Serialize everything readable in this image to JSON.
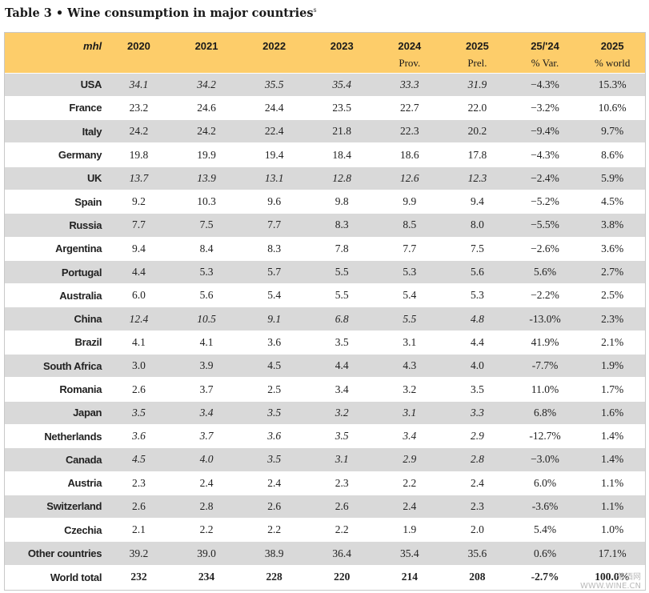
{
  "title": "Table 3 • Wine consumption in major countries",
  "title_footnote": "s",
  "header": {
    "unit": "mhl",
    "columns": [
      {
        "top": "2020",
        "sub": ""
      },
      {
        "top": "2021",
        "sub": ""
      },
      {
        "top": "2022",
        "sub": ""
      },
      {
        "top": "2023",
        "sub": ""
      },
      {
        "top": "2024",
        "sub": "Prov."
      },
      {
        "top": "2025",
        "sub": "Prel."
      },
      {
        "top": "25/'24",
        "sub": "% Var."
      },
      {
        "top": "2025",
        "sub": "% world"
      }
    ]
  },
  "rows": [
    {
      "country": "USA",
      "italic_years": true,
      "values": [
        "34.1",
        "34.2",
        "35.5",
        "35.4",
        "33.3",
        "31.9"
      ],
      "var": "−4.3%",
      "world": "15.3%"
    },
    {
      "country": "France",
      "italic_years": false,
      "values": [
        "23.2",
        "24.6",
        "24.4",
        "23.5",
        "22.7",
        "22.0"
      ],
      "var": "−3.2%",
      "world": "10.6%"
    },
    {
      "country": "Italy",
      "italic_years": false,
      "values": [
        "24.2",
        "24.2",
        "22.4",
        "21.8",
        "22.3",
        "20.2"
      ],
      "var": "−9.4%",
      "world": "9.7%"
    },
    {
      "country": "Germany",
      "italic_years": false,
      "values": [
        "19.8",
        "19.9",
        "19.4",
        "18.4",
        "18.6",
        "17.8"
      ],
      "var": "−4.3%",
      "world": "8.6%"
    },
    {
      "country": "UK",
      "italic_years": true,
      "values": [
        "13.7",
        "13.9",
        "13.1",
        "12.8",
        "12.6",
        "12.3"
      ],
      "var": "−2.4%",
      "world": "5.9%"
    },
    {
      "country": "Spain",
      "italic_years": false,
      "values": [
        "9.2",
        "10.3",
        "9.6",
        "9.8",
        "9.9",
        "9.4"
      ],
      "var": "−5.2%",
      "world": "4.5%"
    },
    {
      "country": "Russia",
      "italic_years": false,
      "values": [
        "7.7",
        "7.5",
        "7.7",
        "8.3",
        "8.5",
        "8.0"
      ],
      "var": "−5.5%",
      "world": "3.8%"
    },
    {
      "country": "Argentina",
      "italic_years": false,
      "values": [
        "9.4",
        "8.4",
        "8.3",
        "7.8",
        "7.7",
        "7.5"
      ],
      "var": "−2.6%",
      "world": "3.6%"
    },
    {
      "country": "Portugal",
      "italic_years": false,
      "values": [
        "4.4",
        "5.3",
        "5.7",
        "5.5",
        "5.3",
        "5.6"
      ],
      "var": "5.6%",
      "world": "2.7%"
    },
    {
      "country": "Australia",
      "italic_years": false,
      "values": [
        "6.0",
        "5.6",
        "5.4",
        "5.5",
        "5.4",
        "5.3"
      ],
      "var": "−2.2%",
      "world": "2.5%"
    },
    {
      "country": "China",
      "italic_years": true,
      "values": [
        "12.4",
        "10.5",
        "9.1",
        "6.8",
        "5.5",
        "4.8"
      ],
      "var": "-13.0%",
      "world": "2.3%"
    },
    {
      "country": "Brazil",
      "italic_years": false,
      "values": [
        "4.1",
        "4.1",
        "3.6",
        "3.5",
        "3.1",
        "4.4"
      ],
      "var": "41.9%",
      "world": "2.1%"
    },
    {
      "country": "South Africa",
      "italic_years": false,
      "values": [
        "3.0",
        "3.9",
        "4.5",
        "4.4",
        "4.3",
        "4.0"
      ],
      "var": "-7.7%",
      "world": "1.9%"
    },
    {
      "country": "Romania",
      "italic_years": false,
      "values": [
        "2.6",
        "3.7",
        "2.5",
        "3.4",
        "3.2",
        "3.5"
      ],
      "var": "11.0%",
      "world": "1.7%"
    },
    {
      "country": "Japan",
      "italic_years": true,
      "values": [
        "3.5",
        "3.4",
        "3.5",
        "3.2",
        "3.1",
        "3.3"
      ],
      "var": "6.8%",
      "world": "1.6%"
    },
    {
      "country": "Netherlands",
      "italic_years": true,
      "values": [
        "3.6",
        "3.7",
        "3.6",
        "3.5",
        "3.4",
        "2.9"
      ],
      "var": "-12.7%",
      "world": "1.4%"
    },
    {
      "country": "Canada",
      "italic_years": true,
      "values": [
        "4.5",
        "4.0",
        "3.5",
        "3.1",
        "2.9",
        "2.8"
      ],
      "var": "−3.0%",
      "world": "1.4%"
    },
    {
      "country": "Austria",
      "italic_years": false,
      "values": [
        "2.3",
        "2.4",
        "2.4",
        "2.3",
        "2.2",
        "2.4"
      ],
      "var": "6.0%",
      "world": "1.1%"
    },
    {
      "country": "Switzerland",
      "italic_years": false,
      "values": [
        "2.6",
        "2.8",
        "2.6",
        "2.6",
        "2.4",
        "2.3"
      ],
      "var": "-3.6%",
      "world": "1.1%"
    },
    {
      "country": "Czechia",
      "italic_years": false,
      "values": [
        "2.1",
        "2.2",
        "2.2",
        "2.2",
        "1.9",
        "2.0"
      ],
      "var": "5.4%",
      "world": "1.0%"
    },
    {
      "country": "Other countries",
      "italic_years": false,
      "values": [
        "39.2",
        "39.0",
        "38.9",
        "36.4",
        "35.4",
        "35.6"
      ],
      "var": "0.6%",
      "world": "17.1%"
    }
  ],
  "total": {
    "country": "World total",
    "values": [
      "232",
      "234",
      "228",
      "220",
      "214",
      "208"
    ],
    "var": "-2.7%",
    "world": "100.0%"
  },
  "watermark": {
    "line1": "葡酒网",
    "line2": "WWW.WINE.CN"
  },
  "colors": {
    "header_bg": "#fdcd6a",
    "shaded_row": "#d9d9d9"
  }
}
